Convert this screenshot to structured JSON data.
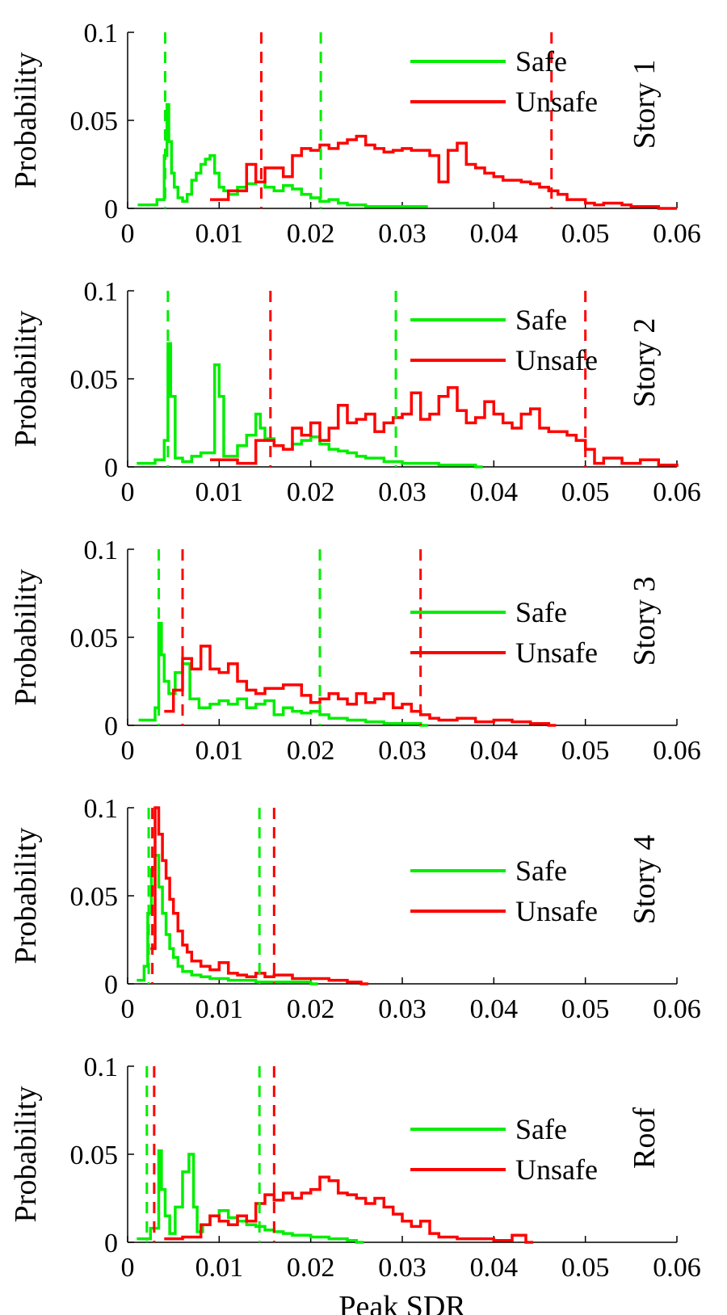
{
  "figure": {
    "xlabel": "Peak SDR",
    "ylabel": "Probability",
    "legend": [
      "Safe",
      "Unsafe"
    ],
    "colors": {
      "safe": "#00ee00",
      "unsafe": "#ff0000"
    }
  },
  "chart_data": [
    {
      "type": "line",
      "title": "Story 1",
      "xlabel": "",
      "ylabel": "Probability",
      "xlim": [
        0,
        0.06
      ],
      "ylim": [
        0,
        0.1
      ],
      "xticks": [
        "0",
        "0.01",
        "0.02",
        "0.03",
        "0.04",
        "0.05",
        "0.06"
      ],
      "yticks": [
        "0",
        "0.05",
        "0.1"
      ],
      "legend_position": "top-right",
      "series": [
        {
          "name": "Safe",
          "color": "#00ee00",
          "bins": [
            0.0011,
            0.0032
          ],
          "x": [
            0.0011,
            0.0032,
            0.004,
            0.0043,
            0.0045,
            0.0048,
            0.0051,
            0.0055,
            0.006,
            0.0065,
            0.007,
            0.0075,
            0.008,
            0.0085,
            0.009,
            0.0095,
            0.01,
            0.0105,
            0.011,
            0.012,
            0.013,
            0.014,
            0.015,
            0.016,
            0.017,
            0.018,
            0.019,
            0.02,
            0.021,
            0.022,
            0.023,
            0.024,
            0.025,
            0.026,
            0.028,
            0.03,
            0.032
          ],
          "y": [
            0.002,
            0.005,
            0.03,
            0.059,
            0.038,
            0.02,
            0.012,
            0.006,
            0.004,
            0.008,
            0.016,
            0.02,
            0.025,
            0.028,
            0.03,
            0.02,
            0.012,
            0.01,
            0.008,
            0.012,
            0.014,
            0.015,
            0.012,
            0.01,
            0.013,
            0.011,
            0.008,
            0.006,
            0.004,
            0.005,
            0.003,
            0.002,
            0.002,
            0.001,
            0.001,
            0.001,
            0.001
          ]
        },
        {
          "name": "Unsafe",
          "color": "#ff0000",
          "x": [
            0.009,
            0.011,
            0.013,
            0.014,
            0.015,
            0.017,
            0.018,
            0.019,
            0.02,
            0.021,
            0.022,
            0.023,
            0.024,
            0.025,
            0.026,
            0.027,
            0.028,
            0.029,
            0.03,
            0.031,
            0.032,
            0.033,
            0.034,
            0.035,
            0.036,
            0.037,
            0.038,
            0.039,
            0.04,
            0.041,
            0.042,
            0.043,
            0.044,
            0.045,
            0.046,
            0.047,
            0.048,
            0.05,
            0.051,
            0.052,
            0.054,
            0.055,
            0.056,
            0.058,
            0.06
          ],
          "y": [
            0.005,
            0.01,
            0.025,
            0.015,
            0.023,
            0.018,
            0.03,
            0.034,
            0.033,
            0.036,
            0.034,
            0.037,
            0.039,
            0.041,
            0.036,
            0.034,
            0.032,
            0.033,
            0.034,
            0.033,
            0.033,
            0.03,
            0.015,
            0.033,
            0.037,
            0.025,
            0.023,
            0.02,
            0.018,
            0.016,
            0.016,
            0.015,
            0.014,
            0.012,
            0.01,
            0.008,
            0.005,
            0.003,
            0.002,
            0.003,
            0.002,
            0.001,
            0.001,
            0.0,
            0.0
          ]
        }
      ],
      "vlines": [
        {
          "series": "Safe",
          "x": [
            0.0041,
            0.0211
          ]
        },
        {
          "series": "Unsafe",
          "x": [
            0.0146,
            0.0463
          ]
        }
      ]
    },
    {
      "type": "line",
      "title": "Story 2",
      "xlabel": "",
      "ylabel": "Probability",
      "xlim": [
        0,
        0.06
      ],
      "ylim": [
        0,
        0.1
      ],
      "xticks": [
        "0",
        "0.01",
        "0.02",
        "0.03",
        "0.04",
        "0.05",
        "0.06"
      ],
      "yticks": [
        "0",
        "0.05",
        "0.1"
      ],
      "legend_position": "top-right",
      "series": [
        {
          "name": "Safe",
          "color": "#00ee00",
          "x": [
            0.001,
            0.003,
            0.004,
            0.0044,
            0.0047,
            0.0052,
            0.006,
            0.007,
            0.008,
            0.0095,
            0.01,
            0.0105,
            0.011,
            0.012,
            0.013,
            0.014,
            0.0145,
            0.015,
            0.016,
            0.017,
            0.018,
            0.019,
            0.02,
            0.021,
            0.022,
            0.023,
            0.024,
            0.025,
            0.026,
            0.028,
            0.03,
            0.032,
            0.034,
            0.036,
            0.038
          ],
          "y": [
            0.002,
            0.004,
            0.015,
            0.07,
            0.04,
            0.005,
            0.003,
            0.006,
            0.008,
            0.058,
            0.04,
            0.006,
            0.006,
            0.012,
            0.018,
            0.03,
            0.022,
            0.016,
            0.012,
            0.01,
            0.013,
            0.015,
            0.017,
            0.013,
            0.01,
            0.009,
            0.008,
            0.006,
            0.005,
            0.003,
            0.002,
            0.002,
            0.001,
            0.001,
            0.0
          ]
        },
        {
          "name": "Unsafe",
          "color": "#ff0000",
          "x": [
            0.009,
            0.012,
            0.014,
            0.016,
            0.017,
            0.018,
            0.019,
            0.02,
            0.021,
            0.022,
            0.023,
            0.024,
            0.025,
            0.026,
            0.027,
            0.028,
            0.029,
            0.03,
            0.031,
            0.032,
            0.033,
            0.034,
            0.035,
            0.036,
            0.037,
            0.038,
            0.039,
            0.04,
            0.041,
            0.042,
            0.043,
            0.044,
            0.045,
            0.046,
            0.047,
            0.048,
            0.049,
            0.05,
            0.051,
            0.052,
            0.054,
            0.056,
            0.058,
            0.06
          ],
          "y": [
            0.004,
            0.002,
            0.015,
            0.012,
            0.01,
            0.022,
            0.018,
            0.025,
            0.015,
            0.022,
            0.035,
            0.025,
            0.027,
            0.03,
            0.02,
            0.025,
            0.028,
            0.03,
            0.042,
            0.027,
            0.03,
            0.04,
            0.045,
            0.032,
            0.025,
            0.028,
            0.037,
            0.03,
            0.025,
            0.022,
            0.03,
            0.033,
            0.022,
            0.02,
            0.02,
            0.018,
            0.015,
            0.01,
            0.002,
            0.005,
            0.002,
            0.004,
            0.001,
            0.0
          ]
        }
      ],
      "vlines": [
        {
          "series": "Safe",
          "x": [
            0.0044,
            0.0293
          ]
        },
        {
          "series": "Unsafe",
          "x": [
            0.0156,
            0.05
          ]
        }
      ]
    },
    {
      "type": "line",
      "title": "Story 3",
      "xlabel": "",
      "ylabel": "Probability",
      "xlim": [
        0,
        0.06
      ],
      "ylim": [
        0,
        0.1
      ],
      "xticks": [
        "0",
        "0.01",
        "0.02",
        "0.03",
        "0.04",
        "0.05",
        "0.06"
      ],
      "yticks": [
        "0",
        "0.05",
        "0.1"
      ],
      "legend_position": "center-right",
      "series": [
        {
          "name": "Safe",
          "color": "#00ee00",
          "x": [
            0.0012,
            0.003,
            0.0034,
            0.0037,
            0.004,
            0.0045,
            0.0052,
            0.006,
            0.0068,
            0.0078,
            0.009,
            0.01,
            0.011,
            0.012,
            0.013,
            0.014,
            0.015,
            0.016,
            0.017,
            0.018,
            0.019,
            0.02,
            0.021,
            0.022,
            0.024,
            0.026,
            0.028,
            0.03,
            0.032
          ],
          "y": [
            0.003,
            0.01,
            0.058,
            0.04,
            0.025,
            0.018,
            0.03,
            0.035,
            0.015,
            0.01,
            0.012,
            0.014,
            0.012,
            0.015,
            0.01,
            0.012,
            0.014,
            0.006,
            0.01,
            0.008,
            0.007,
            0.008,
            0.006,
            0.004,
            0.003,
            0.002,
            0.001,
            0.001,
            0.0
          ]
        },
        {
          "name": "Unsafe",
          "color": "#ff0000",
          "x": [
            0.004,
            0.005,
            0.006,
            0.007,
            0.008,
            0.009,
            0.01,
            0.011,
            0.012,
            0.013,
            0.014,
            0.015,
            0.017,
            0.019,
            0.02,
            0.021,
            0.022,
            0.023,
            0.024,
            0.025,
            0.026,
            0.027,
            0.028,
            0.029,
            0.03,
            0.031,
            0.032,
            0.033,
            0.034,
            0.036,
            0.038,
            0.04,
            0.042,
            0.044,
            0.046
          ],
          "y": [
            0.008,
            0.02,
            0.038,
            0.032,
            0.045,
            0.032,
            0.03,
            0.035,
            0.025,
            0.02,
            0.018,
            0.021,
            0.023,
            0.017,
            0.013,
            0.015,
            0.018,
            0.015,
            0.012,
            0.018,
            0.013,
            0.015,
            0.018,
            0.01,
            0.012,
            0.008,
            0.006,
            0.004,
            0.003,
            0.004,
            0.002,
            0.003,
            0.002,
            0.001,
            0.0
          ]
        }
      ],
      "vlines": [
        {
          "series": "Safe",
          "x": [
            0.0034,
            0.021
          ]
        },
        {
          "series": "Unsafe",
          "x": [
            0.006,
            0.032
          ]
        }
      ]
    },
    {
      "type": "line",
      "title": "Story 4",
      "xlabel": "",
      "ylabel": "Probability",
      "xlim": [
        0,
        0.06
      ],
      "ylim": [
        0,
        0.1
      ],
      "xticks": [
        "0",
        "0.01",
        "0.02",
        "0.03",
        "0.04",
        "0.05",
        "0.06"
      ],
      "yticks": [
        "0",
        "0.05",
        "0.1"
      ],
      "legend_position": "center-right",
      "series": [
        {
          "name": "Safe",
          "color": "#00ee00",
          "x": [
            0.001,
            0.0018,
            0.0022,
            0.0026,
            0.003,
            0.0034,
            0.0038,
            0.0042,
            0.0046,
            0.005,
            0.0055,
            0.006,
            0.007,
            0.008,
            0.009,
            0.01,
            0.011,
            0.012,
            0.014,
            0.016,
            0.018,
            0.02
          ],
          "y": [
            0.002,
            0.01,
            0.04,
            0.065,
            0.073,
            0.055,
            0.04,
            0.028,
            0.02,
            0.015,
            0.01,
            0.007,
            0.005,
            0.004,
            0.003,
            0.003,
            0.002,
            0.002,
            0.001,
            0.001,
            0.001,
            0.0
          ]
        },
        {
          "name": "Unsafe",
          "color": "#ff0000",
          "x": [
            0.0025,
            0.003,
            0.0034,
            0.0038,
            0.0042,
            0.0046,
            0.005,
            0.0055,
            0.006,
            0.0065,
            0.007,
            0.008,
            0.009,
            0.01,
            0.011,
            0.012,
            0.013,
            0.014,
            0.015,
            0.016,
            0.018,
            0.02,
            0.022,
            0.024,
            0.0255
          ],
          "y": [
            0.02,
            0.1,
            0.085,
            0.07,
            0.06,
            0.048,
            0.04,
            0.03,
            0.022,
            0.018,
            0.013,
            0.01,
            0.008,
            0.012,
            0.006,
            0.005,
            0.004,
            0.006,
            0.004,
            0.005,
            0.003,
            0.003,
            0.002,
            0.001,
            0.0
          ]
        }
      ],
      "vlines": [
        {
          "series": "Safe",
          "x": [
            0.0023,
            0.0144
          ]
        },
        {
          "series": "Unsafe",
          "x": [
            0.0027,
            0.016
          ]
        }
      ]
    },
    {
      "type": "line",
      "title": "Roof",
      "xlabel": "Peak SDR",
      "ylabel": "Probability",
      "xlim": [
        0,
        0.06
      ],
      "ylim": [
        0,
        0.1
      ],
      "xticks": [
        "0",
        "0.01",
        "0.02",
        "0.03",
        "0.04",
        "0.05",
        "0.06"
      ],
      "yticks": [
        "0",
        "0.05",
        "0.1"
      ],
      "legend_position": "center-right",
      "series": [
        {
          "name": "Safe",
          "color": "#00ee00",
          "x": [
            0.001,
            0.0025,
            0.0034,
            0.0037,
            0.0041,
            0.0046,
            0.0052,
            0.006,
            0.0067,
            0.0072,
            0.0076,
            0.0082,
            0.009,
            0.01,
            0.011,
            0.012,
            0.013,
            0.014,
            0.015,
            0.016,
            0.017,
            0.018,
            0.02,
            0.022,
            0.024,
            0.025
          ],
          "y": [
            0.002,
            0.008,
            0.052,
            0.03,
            0.015,
            0.005,
            0.02,
            0.04,
            0.05,
            0.02,
            0.006,
            0.01,
            0.015,
            0.018,
            0.014,
            0.012,
            0.01,
            0.009,
            0.007,
            0.006,
            0.005,
            0.004,
            0.003,
            0.002,
            0.001,
            0.0
          ]
        },
        {
          "name": "Unsafe",
          "color": "#ff0000",
          "x": [
            0.004,
            0.006,
            0.008,
            0.009,
            0.01,
            0.011,
            0.012,
            0.013,
            0.014,
            0.015,
            0.016,
            0.017,
            0.018,
            0.019,
            0.02,
            0.021,
            0.022,
            0.023,
            0.024,
            0.025,
            0.026,
            0.027,
            0.028,
            0.029,
            0.03,
            0.031,
            0.032,
            0.033,
            0.034,
            0.036,
            0.038,
            0.04,
            0.042,
            0.0435
          ],
          "y": [
            0.002,
            0.003,
            0.01,
            0.015,
            0.012,
            0.01,
            0.015,
            0.012,
            0.022,
            0.027,
            0.024,
            0.028,
            0.025,
            0.028,
            0.03,
            0.037,
            0.035,
            0.028,
            0.027,
            0.025,
            0.022,
            0.025,
            0.02,
            0.016,
            0.012,
            0.009,
            0.012,
            0.005,
            0.003,
            0.002,
            0.002,
            0.001,
            0.004,
            0.0
          ]
        }
      ],
      "vlines": [
        {
          "series": "Safe",
          "x": [
            0.0021,
            0.0144
          ]
        },
        {
          "series": "Unsafe",
          "x": [
            0.0029,
            0.016
          ]
        }
      ]
    }
  ]
}
